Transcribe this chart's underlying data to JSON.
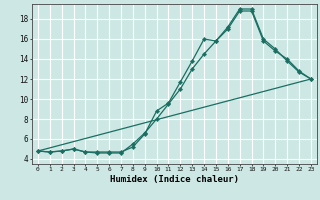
{
  "title": "",
  "xlabel": "Humidex (Indice chaleur)",
  "ylabel": "",
  "bg_color": "#cde8e4",
  "grid_color": "#ffffff",
  "line_color": "#1a6e62",
  "xlim": [
    -0.5,
    23.5
  ],
  "ylim": [
    3.5,
    19.5
  ],
  "yticks": [
    4,
    6,
    8,
    10,
    12,
    14,
    16,
    18
  ],
  "xticks": [
    0,
    1,
    2,
    3,
    4,
    5,
    6,
    7,
    8,
    9,
    10,
    11,
    12,
    13,
    14,
    15,
    16,
    17,
    18,
    19,
    20,
    21,
    22,
    23
  ],
  "line1_x": [
    0,
    1,
    2,
    3,
    4,
    5,
    6,
    7,
    8,
    9,
    10,
    11,
    12,
    13,
    14,
    15,
    16,
    17,
    18,
    19,
    20,
    21,
    22,
    23
  ],
  "line1_y": [
    4.8,
    4.7,
    4.8,
    5.0,
    4.7,
    4.7,
    4.7,
    4.7,
    5.2,
    6.5,
    8.8,
    9.6,
    11.7,
    13.8,
    16.0,
    15.8,
    17.2,
    19.0,
    19.0,
    16.0,
    15.0,
    13.8,
    12.7,
    12.0
  ],
  "line2_x": [
    0,
    1,
    2,
    3,
    4,
    5,
    6,
    7,
    8,
    9,
    10,
    11,
    12,
    13,
    14,
    15,
    16,
    17,
    18,
    19,
    20,
    21,
    22,
    23
  ],
  "line2_y": [
    4.8,
    4.7,
    4.8,
    5.0,
    4.7,
    4.6,
    4.6,
    4.6,
    5.5,
    6.6,
    8.0,
    9.5,
    11.0,
    13.0,
    14.5,
    15.8,
    17.0,
    18.8,
    18.8,
    15.8,
    14.8,
    14.0,
    12.8,
    12.0
  ],
  "line3_x": [
    0,
    23
  ],
  "line3_y": [
    4.8,
    12.0
  ]
}
